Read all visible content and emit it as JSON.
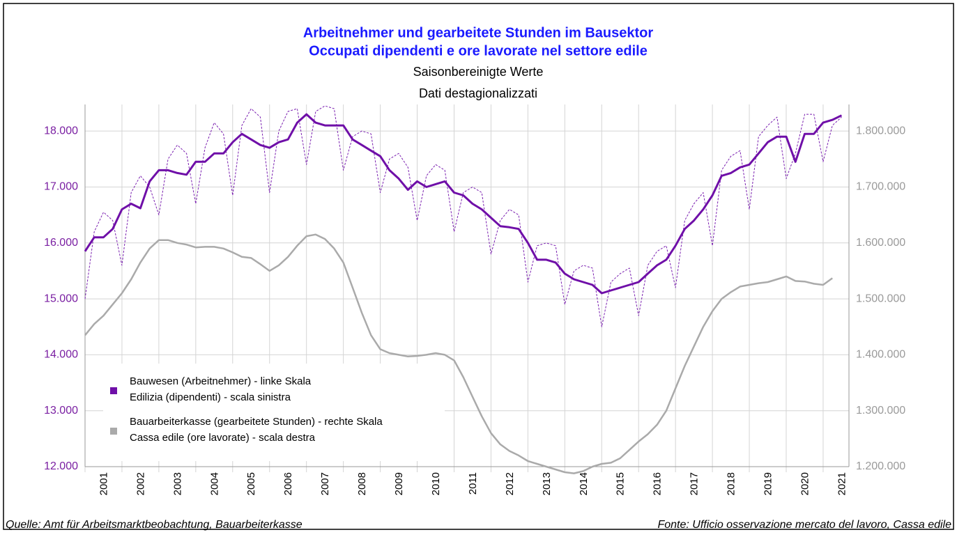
{
  "chart_data": {
    "type": "line",
    "title": [
      "Arbeitnehmer und gearbeitete Stunden im Bausektor",
      "Occupati dipendenti e ore lavorate nel settore edile"
    ],
    "subtitle": [
      "Saisonbereinigte Werte",
      "Dati destagionalizzati"
    ],
    "notes": [
      "Quelle: Amt für Arbeitsmarktbeobachtung, Bauarbeiterkasse",
      "Fonte: Ufficio osservazione mercato del lavoro, Cassa edile"
    ],
    "x": [
      2001,
      2001.25,
      2001.5,
      2001.75,
      2002,
      2002.25,
      2002.5,
      2002.75,
      2003,
      2003.25,
      2003.5,
      2003.75,
      2004,
      2004.25,
      2004.5,
      2004.75,
      2005,
      2005.25,
      2005.5,
      2005.75,
      2006,
      2006.25,
      2006.5,
      2006.75,
      2007,
      2007.25,
      2007.5,
      2007.75,
      2008,
      2008.25,
      2008.5,
      2008.75,
      2009,
      2009.25,
      2009.5,
      2009.75,
      2010,
      2010.25,
      2010.5,
      2010.75,
      2011,
      2011.25,
      2011.5,
      2011.75,
      2012,
      2012.25,
      2012.5,
      2012.75,
      2013,
      2013.25,
      2013.5,
      2013.75,
      2014,
      2014.25,
      2014.5,
      2014.75,
      2015,
      2015.25,
      2015.5,
      2015.75,
      2016,
      2016.25,
      2016.5,
      2016.75,
      2017,
      2017.25,
      2017.5,
      2017.75,
      2018,
      2018.25,
      2018.5,
      2018.75,
      2019,
      2019.25,
      2019.5,
      2019.75,
      2020,
      2020.25,
      2020.5,
      2020.75,
      2021,
      2021.25,
      2021.5
    ],
    "series": [
      {
        "style": "dashed",
        "color": "#7a1fb0",
        "values": [
          15000,
          16200,
          16550,
          16400,
          15600,
          16900,
          17200,
          17000,
          16500,
          17500,
          17750,
          17600,
          16700,
          17700,
          18150,
          17950,
          16850,
          18100,
          18400,
          18250,
          16900,
          18000,
          18350,
          18400,
          17400,
          18350,
          18450,
          18400,
          17300,
          17900,
          18000,
          17950,
          16900,
          17500,
          17600,
          17350,
          16400,
          17200,
          17400,
          17300,
          16200,
          16900,
          17000,
          16900,
          15800,
          16400,
          16600,
          16500,
          15300,
          15950,
          16000,
          15950,
          14900,
          15500,
          15600,
          15550,
          14500,
          15300,
          15450,
          15550,
          14700,
          15600,
          15850,
          15950,
          15200,
          16400,
          16700,
          16900,
          15950,
          17300,
          17550,
          17650,
          16600,
          17900,
          18100,
          18250,
          17150,
          17600,
          18300,
          18300,
          17450,
          18100,
          18250
        ]
      },
      {
        "name": [
          "Bauwesen (Arbeitnehmer) - linke Skala",
          "Edilizia (dipendenti) - scala sinistra"
        ],
        "color": "#6f0fa8",
        "values": [
          15850,
          16100,
          16100,
          16250,
          16600,
          16700,
          16620,
          17100,
          17300,
          17300,
          17250,
          17220,
          17450,
          17450,
          17600,
          17600,
          17800,
          17950,
          17850,
          17750,
          17700,
          17800,
          17850,
          18150,
          18300,
          18150,
          18100,
          18100,
          18100,
          17850,
          17750,
          17650,
          17550,
          17300,
          17150,
          16950,
          17100,
          17000,
          17050,
          17100,
          16900,
          16850,
          16700,
          16600,
          16450,
          16300,
          16280,
          16250,
          16000,
          15700,
          15700,
          15650,
          15450,
          15350,
          15300,
          15250,
          15100,
          15150,
          15200,
          15250,
          15300,
          15450,
          15600,
          15700,
          15950,
          16250,
          16400,
          16600,
          16850,
          17200,
          17250,
          17350,
          17400,
          17600,
          17800,
          17900,
          17900,
          17450,
          17950,
          17950,
          18150,
          18200,
          18280
        ]
      },
      {
        "name": [
          "Bauarbeiterkasse (gearbeitete Stunden) - rechte Skala",
          "Cassa edile (ore lavorate) - scala destra"
        ],
        "color": "#aaaaaa",
        "axis": "y2",
        "values": [
          1435000,
          1455000,
          1470000,
          1490000,
          1510000,
          1535000,
          1565000,
          1590000,
          1605000,
          1605000,
          1600000,
          1597000,
          1592000,
          1593000,
          1593000,
          1590000,
          1583000,
          1575000,
          1573000,
          1562000,
          1550000,
          1560000,
          1575000,
          1595000,
          1612000,
          1615000,
          1607000,
          1590000,
          1565000,
          1520000,
          1475000,
          1435000,
          1410000,
          1403000,
          1400000,
          1397000,
          1398000,
          1400000,
          1403000,
          1400000,
          1390000,
          1360000,
          1325000,
          1290000,
          1260000,
          1240000,
          1228000,
          1220000,
          1210000,
          1205000,
          1200000,
          1195000,
          1190000,
          1188000,
          1192000,
          1200000,
          1205000,
          1207000,
          1215000,
          1230000,
          1245000,
          1258000,
          1275000,
          1300000,
          1340000,
          1380000,
          1415000,
          1450000,
          1478000,
          1500000,
          1512000,
          1522000,
          1525000,
          1528000,
          1530000,
          1535000,
          1540000,
          1532000,
          1531000,
          1527000,
          1525000,
          1537000,
          null
        ]
      }
    ],
    "xlim": [
      2001,
      2021.7
    ],
    "xticks": [
      2001,
      2002,
      2003,
      2004,
      2005,
      2006,
      2007,
      2008,
      2009,
      2010,
      2011,
      2012,
      2013,
      2014,
      2015,
      2016,
      2017,
      2018,
      2019,
      2020,
      2021
    ],
    "ylim": [
      12000,
      18475
    ],
    "yticks": [
      {
        "value": 12000,
        "label": "12.000"
      },
      {
        "value": 13000,
        "label": "13.000"
      },
      {
        "value": 14000,
        "label": "14.000"
      },
      {
        "value": 15000,
        "label": "15.000"
      },
      {
        "value": 16000,
        "label": "16.000"
      },
      {
        "value": 17000,
        "label": "17.000"
      },
      {
        "value": 18000,
        "label": "18.000"
      }
    ],
    "y2lim": [
      1200000,
      1847500
    ],
    "y2ticks": [
      {
        "value": 1200000,
        "label": "1.200.000"
      },
      {
        "value": 1300000,
        "label": "1.300.000"
      },
      {
        "value": 1400000,
        "label": "1.400.000"
      },
      {
        "value": 1500000,
        "label": "1.500.000"
      },
      {
        "value": 1600000,
        "label": "1.600.000"
      },
      {
        "value": 1700000,
        "label": "1.700.000"
      },
      {
        "value": 1800000,
        "label": "1.800.000"
      }
    ],
    "grid": true,
    "legend": "lower left"
  }
}
